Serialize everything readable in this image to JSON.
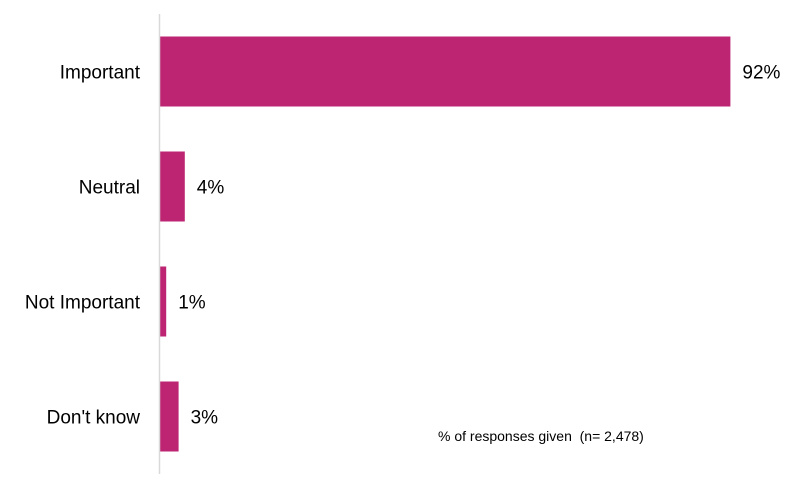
{
  "chart_data": {
    "type": "bar",
    "orientation": "horizontal",
    "categories": [
      "Important",
      "Neutral",
      "Not Important",
      "Don't know"
    ],
    "values": [
      92,
      4,
      1,
      3
    ],
    "value_labels": [
      "92%",
      "4%",
      "1%",
      "3%"
    ],
    "xlim": [
      0,
      100
    ],
    "title": "",
    "xlabel": "",
    "ylabel": "",
    "grid": false,
    "legend": "none",
    "bar_color": "#BD2573",
    "annotation": "% of responses given  (n= 2,478)"
  }
}
